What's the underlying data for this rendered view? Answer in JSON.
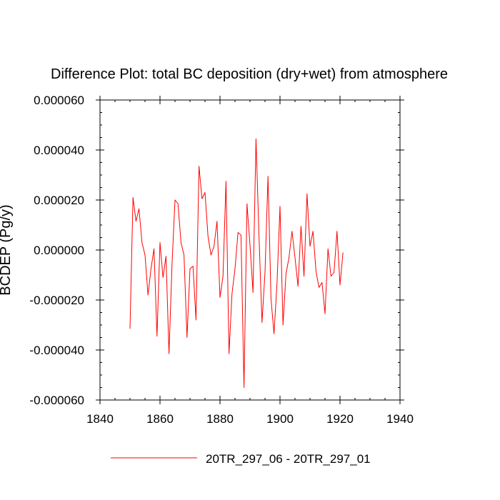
{
  "chart_data": {
    "type": "line",
    "title": "Difference Plot: total BC deposition (dry+wet) from atmosphere",
    "ylabel": "BCDEP (Pg/y)",
    "xlabel": "",
    "xlim": [
      1840,
      1940
    ],
    "ylim": [
      -6e-05,
      6e-05
    ],
    "x_ticks": [
      1840,
      1860,
      1880,
      1900,
      1920,
      1940
    ],
    "x_tick_labels": [
      "1840",
      "1860",
      "1880",
      "1900",
      "1920",
      "1940"
    ],
    "y_ticks": [
      -6e-05,
      -4e-05,
      -2e-05,
      0,
      2e-05,
      4e-05,
      6e-05
    ],
    "y_tick_labels": [
      "-0.000060",
      "-0.000040",
      "-0.000020",
      "0.000000",
      "0.000020",
      "0.000040",
      "0.000060"
    ],
    "grid": false,
    "legend_position": "bottom",
    "series": [
      {
        "name": "20TR_297_06 - 20TR_297_01",
        "color": "#ff0000",
        "x": [
          1850,
          1851,
          1852,
          1853,
          1854,
          1855,
          1856,
          1857,
          1858,
          1859,
          1860,
          1861,
          1862,
          1863,
          1864,
          1865,
          1866,
          1867,
          1868,
          1869,
          1870,
          1871,
          1872,
          1873,
          1874,
          1875,
          1876,
          1877,
          1878,
          1879,
          1880,
          1881,
          1882,
          1883,
          1884,
          1885,
          1886,
          1887,
          1888,
          1889,
          1890,
          1891,
          1892,
          1893,
          1894,
          1895,
          1896,
          1897,
          1898,
          1899,
          1900,
          1901,
          1902,
          1903,
          1904,
          1905,
          1906,
          1907,
          1908,
          1909,
          1910,
          1911,
          1912,
          1913,
          1914,
          1915,
          1916,
          1917,
          1918,
          1919,
          1920,
          1921
        ],
        "y": [
          -3.15e-05,
          2.1e-05,
          1.15e-05,
          1.65e-05,
          3e-06,
          -2e-06,
          -1.8e-05,
          -7.5e-06,
          5e-07,
          -3.45e-05,
          3e-06,
          -1.1e-05,
          -2.5e-06,
          -4.15e-05,
          -6e-06,
          2e-05,
          1.85e-05,
          3e-06,
          -2e-06,
          -3.5e-05,
          -7.5e-06,
          -6.5e-06,
          -2.8e-05,
          3.35e-05,
          2.05e-05,
          2.3e-05,
          5.5e-06,
          -2e-06,
          1.5e-06,
          1.15e-05,
          -1.9e-05,
          -1.05e-05,
          2.75e-05,
          -4.15e-05,
          -1.75e-05,
          -7.5e-06,
          7e-06,
          6e-06,
          -5.5e-05,
          1.85e-05,
          2e-06,
          -1.7e-05,
          4.45e-05,
          5.5e-06,
          -2.9e-05,
          -9e-06,
          2.95e-05,
          -1.95e-05,
          -3.35e-05,
          -1.35e-05,
          1.75e-05,
          -3e-05,
          -9.5e-06,
          -3e-06,
          7.5e-06,
          -3e-06,
          -1.45e-05,
          9.5e-06,
          -1.05e-05,
          2.25e-05,
          1.5e-06,
          7.5e-06,
          -8.5e-06,
          -1.5e-05,
          -1.3e-05,
          -2.55e-05,
          5e-07,
          -1.05e-05,
          -9e-06,
          7.5e-06,
          -1.4e-05,
          -1e-06
        ]
      }
    ]
  }
}
